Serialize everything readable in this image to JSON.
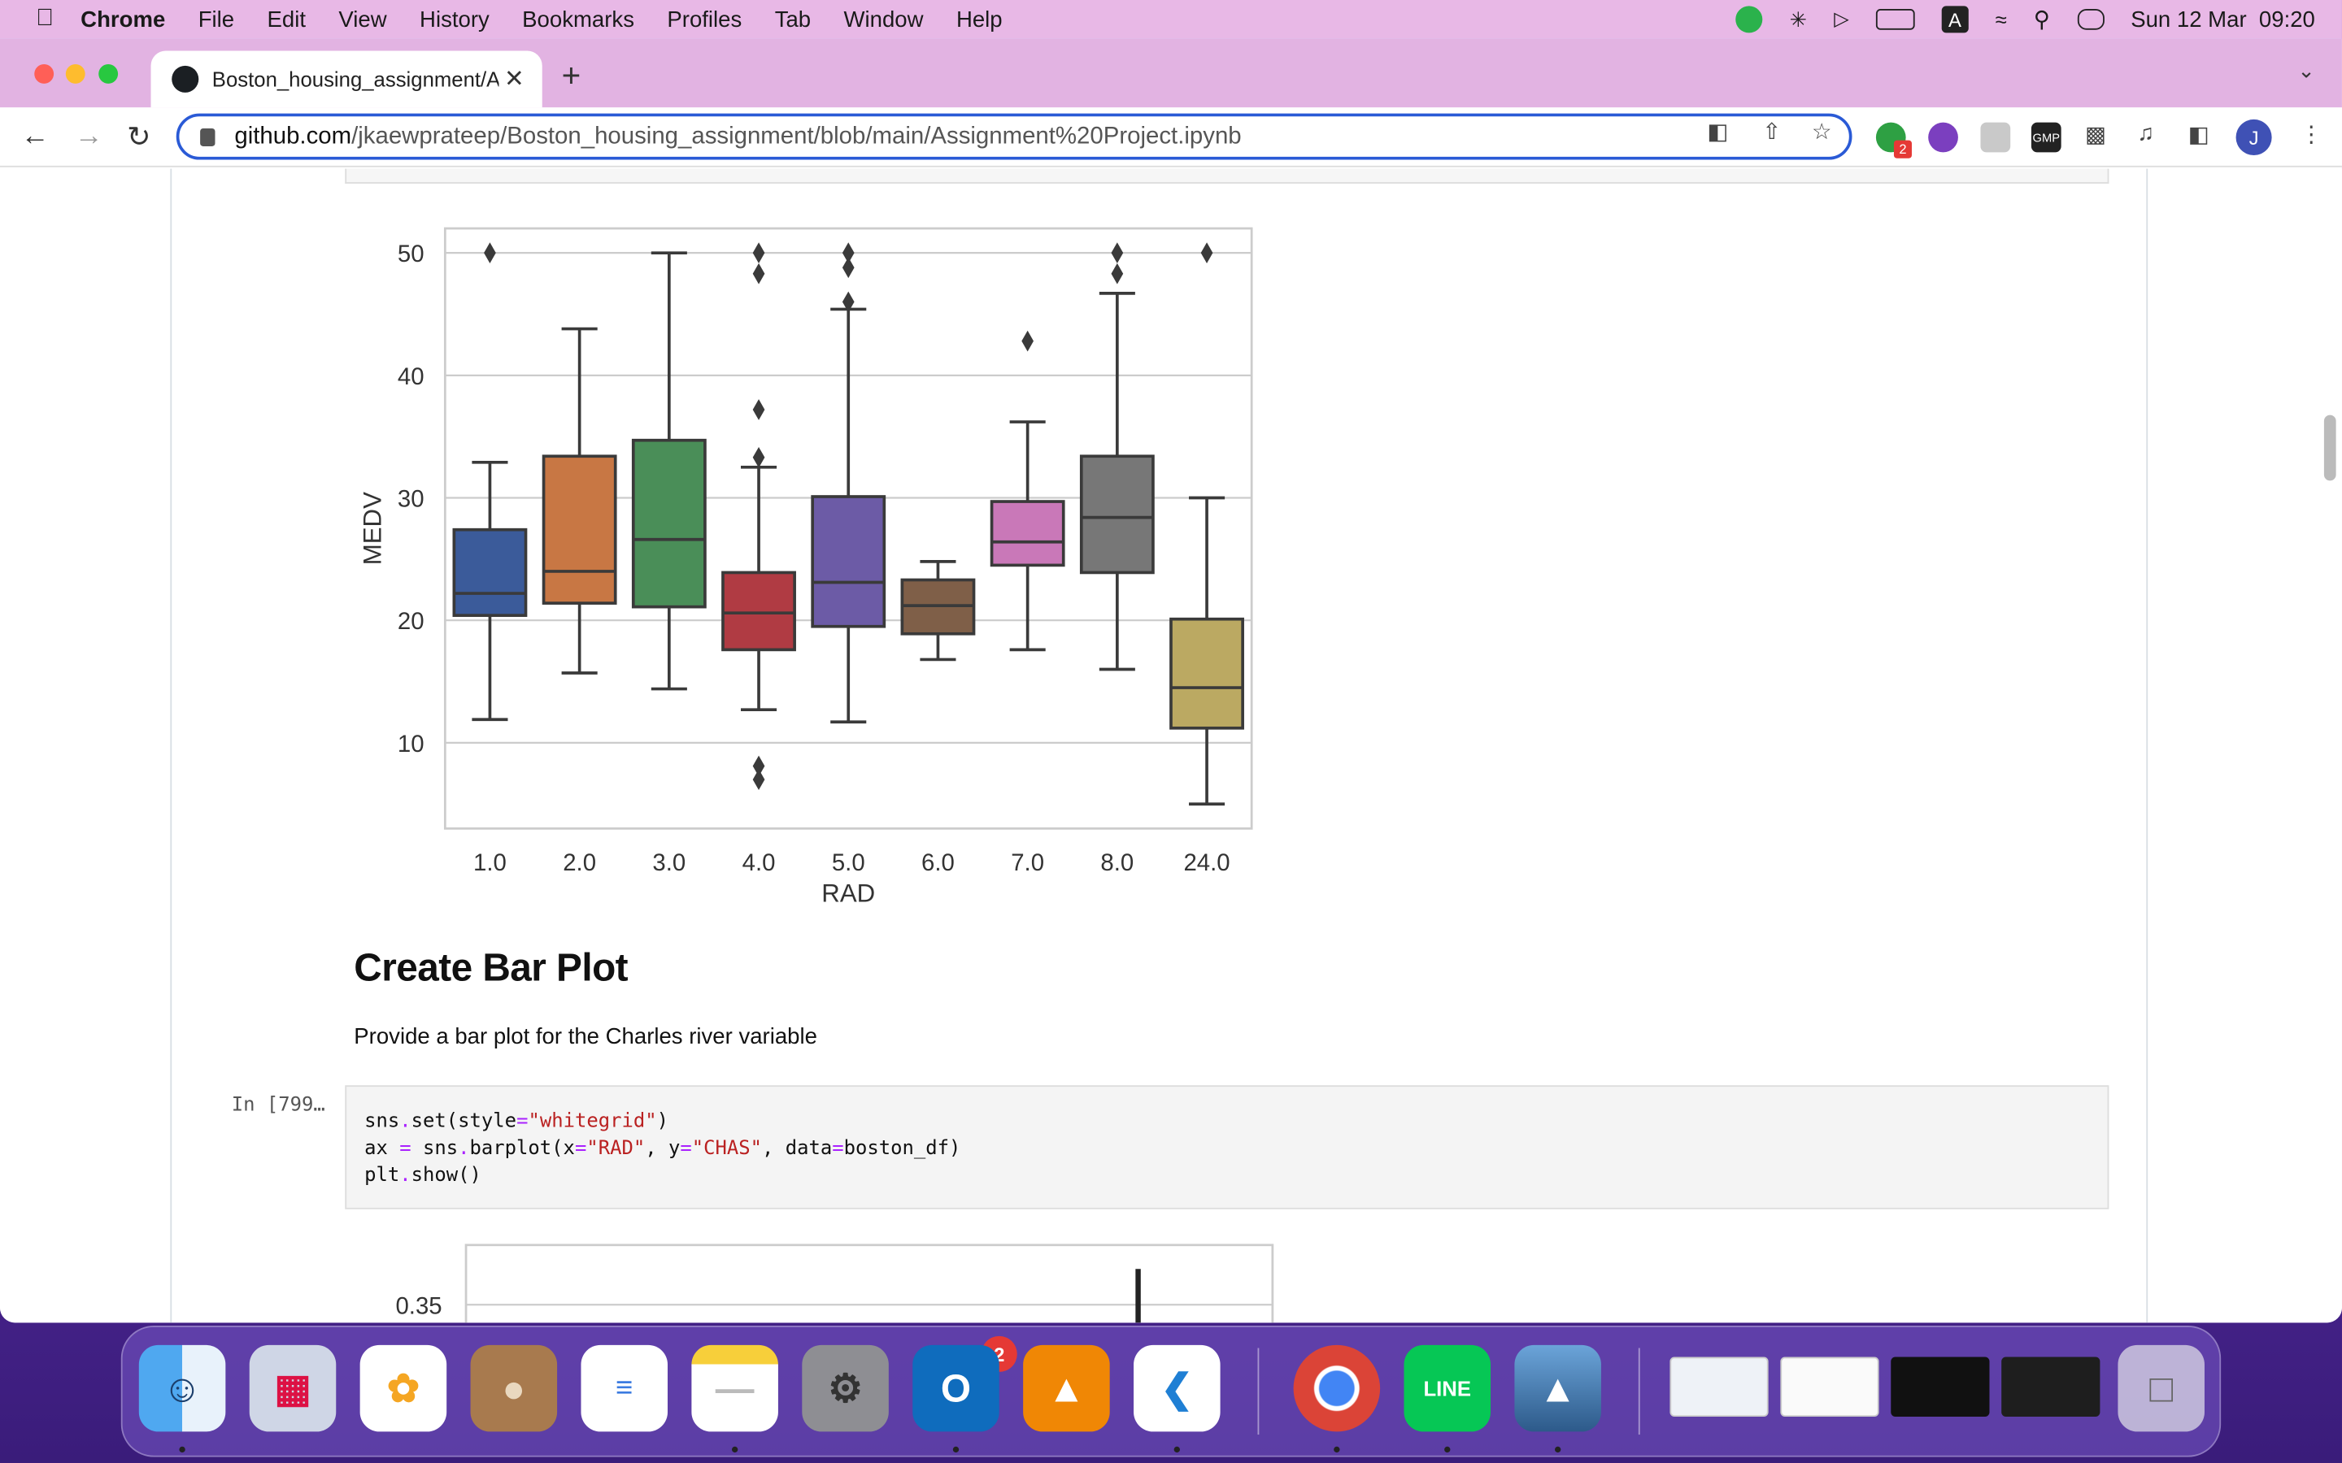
{
  "menubar": {
    "app": "Chrome",
    "items": [
      "File",
      "Edit",
      "View",
      "History",
      "Bookmarks",
      "Profiles",
      "Tab",
      "Window",
      "Help"
    ],
    "datetime": "Sun 12 Mar  09:20"
  },
  "browser": {
    "tab_title": "Boston_housing_assignment/A",
    "url_domain": "github.com",
    "url_path": "/jkaewprateep/Boston_housing_assignment/blob/main/Assignment%20Project.ipynb",
    "profile_initial": "J",
    "extension_badge": "2"
  },
  "notebook": {
    "heading": "Create Bar Plot",
    "paragraph": "Provide a bar plot for the Charles river variable",
    "prompt": "In [799…",
    "code_lines": [
      "sns.set(style=\"whitegrid\")",
      "ax = sns.barplot(x=\"RAD\", y=\"CHAS\", data=boston_df)",
      "plt.show()"
    ]
  },
  "chart_data": [
    {
      "type": "box",
      "xlabel": "RAD",
      "ylabel": "MEDV",
      "ylim": [
        3,
        52
      ],
      "yticks": [
        10,
        20,
        30,
        40,
        50
      ],
      "categories": [
        "1.0",
        "2.0",
        "3.0",
        "4.0",
        "5.0",
        "6.0",
        "7.0",
        "8.0",
        "24.0"
      ],
      "boxes": [
        {
          "whislo": 11.9,
          "q1": 20.4,
          "med": 22.2,
          "q3": 27.4,
          "whishi": 32.9,
          "fliers": [
            50
          ],
          "color": "#3b5b9a"
        },
        {
          "whislo": 15.7,
          "q1": 21.4,
          "med": 24.0,
          "q3": 33.4,
          "whishi": 43.8,
          "fliers": [],
          "color": "#c87744"
        },
        {
          "whislo": 14.4,
          "q1": 21.1,
          "med": 26.6,
          "q3": 34.7,
          "whishi": 50.0,
          "fliers": [],
          "color": "#4a8e58"
        },
        {
          "whislo": 12.7,
          "q1": 17.6,
          "med": 20.6,
          "q3": 23.9,
          "whishi": 32.5,
          "fliers": [
            50,
            48.3,
            37.2,
            33.3,
            8.1,
            7.0
          ],
          "color": "#b03b43"
        },
        {
          "whislo": 11.7,
          "q1": 19.5,
          "med": 23.1,
          "q3": 30.1,
          "whishi": 45.4,
          "fliers": [
            50,
            48.8,
            46.0
          ],
          "color": "#6c5ba6"
        },
        {
          "whislo": 16.8,
          "q1": 18.9,
          "med": 21.2,
          "q3": 23.3,
          "whishi": 24.8,
          "fliers": [],
          "color": "#7f5f48"
        },
        {
          "whislo": 17.6,
          "q1": 24.5,
          "med": 26.4,
          "q3": 29.7,
          "whishi": 36.2,
          "fliers": [
            42.8
          ],
          "color": "#c978b8"
        },
        {
          "whislo": 16.0,
          "q1": 23.9,
          "med": 28.4,
          "q3": 33.4,
          "whishi": 46.7,
          "fliers": [
            50,
            48.3
          ],
          "color": "#777777"
        },
        {
          "whislo": 5.0,
          "q1": 11.2,
          "med": 14.5,
          "q3": 20.1,
          "whishi": 30.0,
          "fliers": [
            50
          ],
          "color": "#bba962"
        }
      ]
    },
    {
      "type": "bar",
      "yticks": [
        0.35
      ],
      "ylim": [
        0.31,
        0.37
      ],
      "note": "partially visible"
    }
  ],
  "dock": {
    "badge_settings": "2",
    "apps": [
      "finder-icon",
      "launchpad-icon",
      "photos-icon",
      "contacts-icon",
      "reminders-icon",
      "notes-icon",
      "system-settings-icon",
      "outlook-icon",
      "drawio-icon",
      "vscode-icon",
      "chrome-icon",
      "line-icon",
      "preview-icon",
      "trash-icon"
    ]
  }
}
